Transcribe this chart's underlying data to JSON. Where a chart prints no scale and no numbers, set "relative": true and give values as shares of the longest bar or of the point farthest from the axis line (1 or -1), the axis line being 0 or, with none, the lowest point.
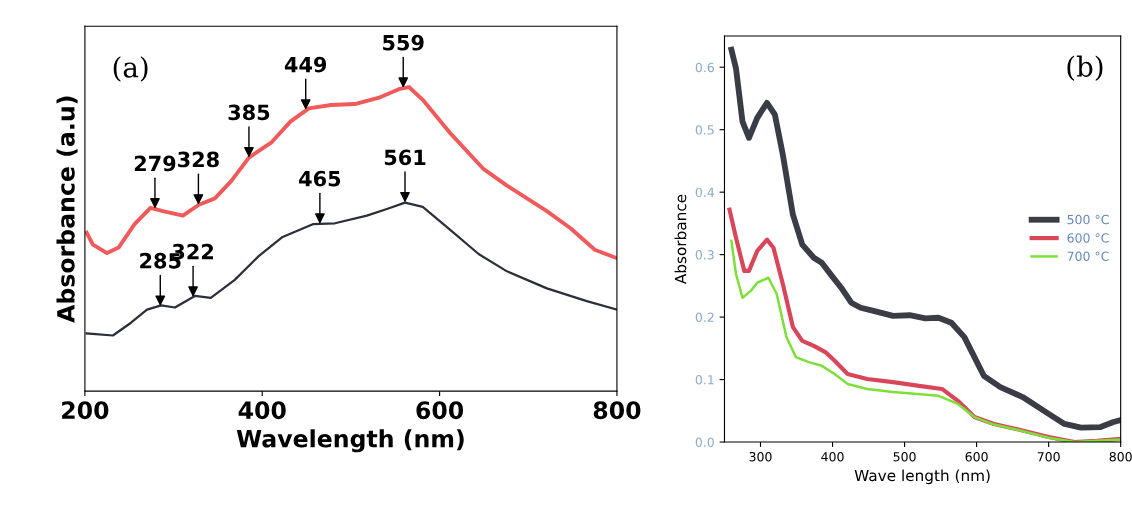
{
  "chart_data": [
    {
      "type": "line",
      "xlabel": "Wavelength (nm)",
      "ylabel": "Absorbance (a.u)",
      "relative": true,
      "xlim": [
        200,
        800
      ],
      "xticks": [
        200,
        400,
        600,
        800
      ],
      "tick_labels": "x",
      "legend": false,
      "grid": false,
      "annotations": [
        "(a)",
        {
          "text": "279",
          "x": 279,
          "y": 0.6
        },
        {
          "text": "328",
          "x": 328,
          "y": 0.613
        },
        {
          "text": "385",
          "x": 385,
          "y": 0.768
        },
        {
          "text": "449",
          "x": 449,
          "y": 0.925
        },
        {
          "text": "559",
          "x": 559,
          "y": 0.997
        },
        {
          "text": "285",
          "x": 285,
          "y": 0.28
        },
        {
          "text": "322",
          "x": 322,
          "y": 0.31
        },
        {
          "text": "465",
          "x": 465,
          "y": 0.55
        },
        {
          "text": "561",
          "x": 561,
          "y": 0.62
        }
      ],
      "series": [
        {
          "color": "#f05a5a",
          "x": [
            202,
            209,
            225,
            238,
            256,
            274,
            288,
            310.5,
            328.5,
            346.6,
            364.7,
            385,
            410,
            432,
            452.6,
            477.5,
            504.5,
            531.6,
            554,
            565.4,
            581,
            613,
            649,
            676,
            721,
            748,
            775,
            800
          ],
          "values": [
            0.521,
            0.482,
            0.454,
            0.472,
            0.549,
            0.603,
            0.592,
            0.577,
            0.613,
            0.634,
            0.69,
            0.768,
            0.817,
            0.887,
            0.93,
            0.941,
            0.944,
            0.965,
            0.993,
            1.0,
            0.958,
            0.845,
            0.732,
            0.676,
            0.592,
            0.535,
            0.465,
            0.437
          ]
        },
        {
          "color": "#2a2f3a",
          "x": [
            202,
            231.6,
            252,
            270,
            286,
            301.5,
            324,
            342,
            369,
            396,
            423,
            457,
            482,
            518,
            540.6,
            561,
            581,
            613,
            644,
            676,
            721,
            766,
            800
          ],
          "values": [
            0.19,
            0.183,
            0.225,
            0.268,
            0.282,
            0.275,
            0.313,
            0.307,
            0.366,
            0.444,
            0.507,
            0.549,
            0.552,
            0.577,
            0.599,
            0.62,
            0.606,
            0.528,
            0.451,
            0.394,
            0.338,
            0.296,
            0.268
          ]
        }
      ]
    },
    {
      "type": "line",
      "xlabel": "Wave length (nm)",
      "ylabel": "Absorbance",
      "xlim": [
        250,
        800
      ],
      "xticks": [
        300,
        400,
        500,
        600,
        700,
        800
      ],
      "ylim": [
        0,
        0.65
      ],
      "yticks": [
        {
          "value": 0,
          "label": "0.0"
        },
        0.1,
        0.2,
        0.3,
        0.4,
        0.5,
        0.6
      ],
      "legend": "right",
      "grid": false,
      "annotations": [
        "(b)"
      ],
      "series": [
        {
          "name": "500 °C",
          "color": "#3a3d45",
          "x": [
            259.6,
            266,
            275,
            284,
            295.5,
            309,
            320,
            331,
            345,
            358,
            374,
            385,
            399,
            412,
            426,
            439,
            457,
            484,
            507,
            529,
            547,
            565,
            583,
            597,
            610,
            633,
            664,
            700,
            722,
            745,
            772,
            790,
            800
          ],
          "values": [
            0.628,
            0.598,
            0.513,
            0.487,
            0.519,
            0.543,
            0.524,
            0.46,
            0.364,
            0.316,
            0.295,
            0.287,
            0.266,
            0.247,
            0.223,
            0.215,
            0.21,
            0.202,
            0.203,
            0.198,
            0.199,
            0.191,
            0.168,
            0.136,
            0.106,
            0.088,
            0.072,
            0.045,
            0.029,
            0.023,
            0.024,
            0.032,
            0.035
          ]
        },
        {
          "name": "600 °C",
          "color": "#d9465a",
          "x": [
            257,
            266,
            277.5,
            284,
            295.5,
            309,
            318,
            331,
            345,
            358,
            374,
            390,
            403,
            421,
            448,
            484,
            520,
            552,
            574,
            597,
            624,
            655,
            700,
            736,
            767,
            800
          ],
          "values": [
            0.372,
            0.327,
            0.274,
            0.274,
            0.306,
            0.324,
            0.311,
            0.253,
            0.184,
            0.162,
            0.154,
            0.144,
            0.13,
            0.109,
            0.101,
            0.096,
            0.09,
            0.085,
            0.066,
            0.04,
            0.029,
            0.021,
            0.008,
            0.0,
            0.002,
            0.005
          ]
        },
        {
          "name": "700 °C",
          "color": "#7de03a",
          "x": [
            259.6,
            266,
            275,
            286.5,
            295.5,
            311,
            322.5,
            336,
            349,
            367,
            385,
            403,
            421,
            448,
            484,
            547,
            574,
            597,
            624,
            655,
            700,
            736,
            767,
            800
          ],
          "values": [
            0.322,
            0.269,
            0.231,
            0.242,
            0.255,
            0.263,
            0.237,
            0.168,
            0.136,
            0.128,
            0.122,
            0.109,
            0.093,
            0.085,
            0.08,
            0.074,
            0.061,
            0.04,
            0.028,
            0.02,
            0.007,
            0.0,
            0.002,
            0.004
          ]
        }
      ]
    }
  ]
}
